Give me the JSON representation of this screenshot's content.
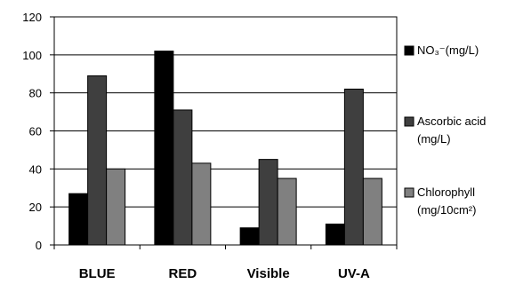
{
  "chart_data": {
    "type": "bar",
    "categories": [
      "BLUE",
      "RED",
      "Visible",
      "UV-A"
    ],
    "series": [
      {
        "name": "NO₃⁻(mg/L)",
        "name_lines": [
          "NO₃⁻(mg/L)"
        ],
        "values": [
          27,
          102,
          9,
          11
        ],
        "color": "#000000"
      },
      {
        "name": "Ascorbic acid (mg/L)",
        "name_lines": [
          "Ascorbic acid",
          "(mg/L)"
        ],
        "values": [
          89,
          71,
          45,
          82
        ],
        "color": "#3f3f3f"
      },
      {
        "name": "Chlorophyll (mg/10cm²)",
        "name_lines": [
          "Chlorophyll",
          "(mg/10cm²)"
        ],
        "values": [
          40,
          43,
          35,
          35
        ],
        "color": "#808080"
      }
    ],
    "ylim": [
      0,
      120
    ],
    "yticks": [
      0,
      20,
      40,
      60,
      80,
      100,
      120
    ],
    "grid": true,
    "legend_position": "right",
    "title": "",
    "xlabel": "",
    "ylabel": ""
  }
}
